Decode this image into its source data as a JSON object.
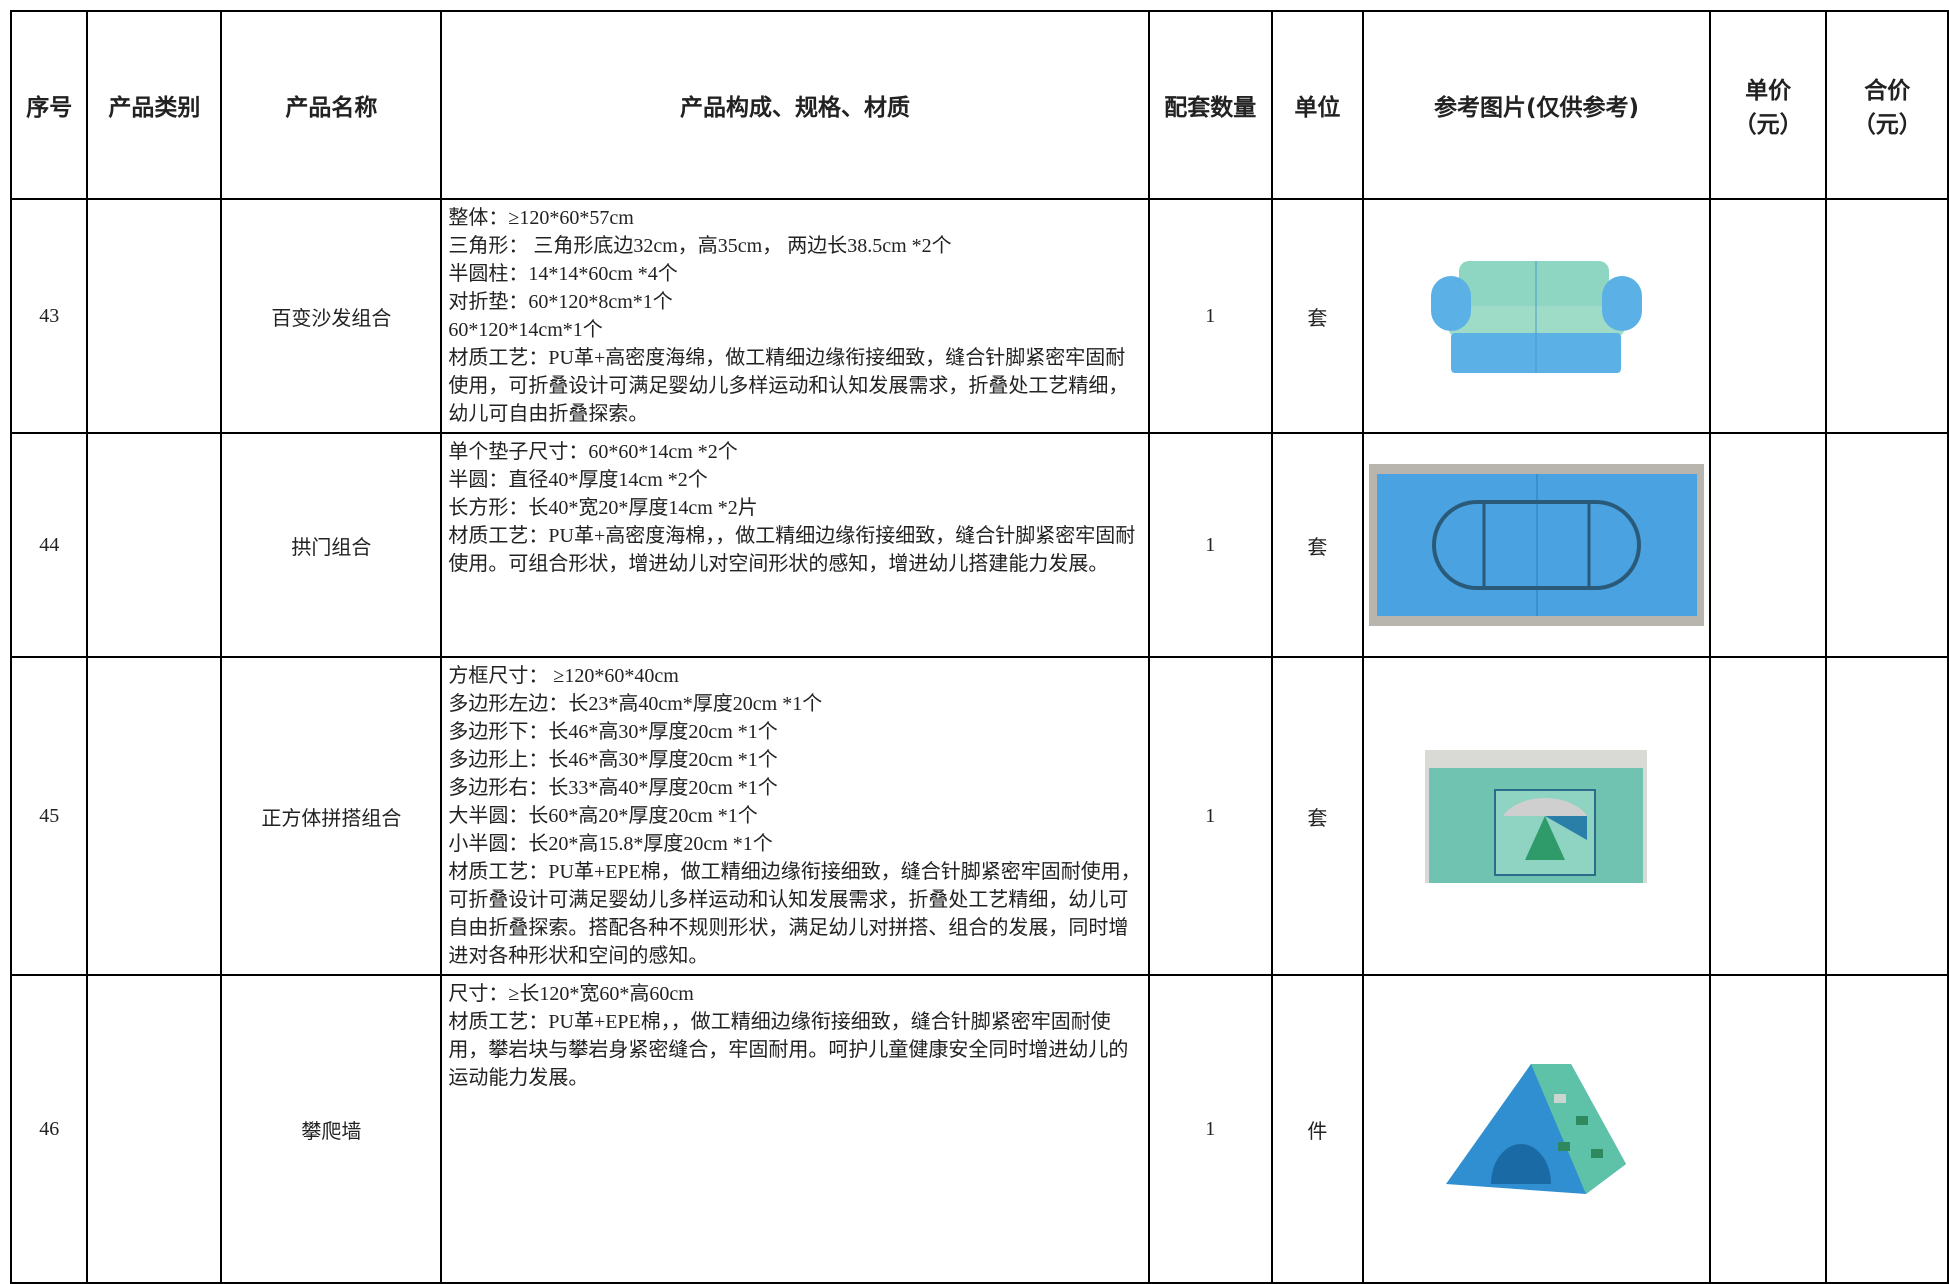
{
  "table": {
    "headers": [
      [
        "序号"
      ],
      [
        "产品类别"
      ],
      [
        "产品名称"
      ],
      [
        "产品构成、规格、材质"
      ],
      [
        "配套数量"
      ],
      [
        "单位"
      ],
      [
        "参考图片(仅供参考)"
      ],
      [
        "单价",
        "（元）"
      ],
      [
        "合价",
        "（元）"
      ]
    ],
    "rows": [
      {
        "no": "43",
        "name": "百变沙发组合",
        "spec": [
          "整体：≥120*60*57cm",
          "三角形： 三角形底边32cm，高35cm， 两边长38.5cm *2个",
          "半圆柱：14*14*60cm *4个",
          "对折垫：60*120*8cm*1个",
          "60*120*14cm*1个",
          "材质工艺：PU革+高密度海绵，做工精细边缘衔接细致，缝合针脚紧密牢固耐使用，可折叠设计可满足婴幼儿多样运动和认知发展需求，折叠处工艺精细，幼儿可自由折叠探索。"
        ],
        "qty": "1",
        "unit": "套"
      },
      {
        "no": "44",
        "name": "拱门组合",
        "spec": [
          "单个垫子尺寸：60*60*14cm *2个",
          "半圆：直径40*厚度14cm *2个",
          "长方形：长40*宽20*厚度14cm *2片",
          "材质工艺：PU革+高密度海棉，，做工精细边缘衔接细致，缝合针脚紧密牢固耐使用。可组合形状，增进幼儿对空间形状的感知，增进幼儿搭建能力发展。"
        ],
        "qty": "1",
        "unit": "套"
      },
      {
        "no": "45",
        "name": "正方体拼搭组合",
        "spec": [
          "方框尺寸： ≥120*60*40cm",
          "多边形左边：长23*高40cm*厚度20cm *1个",
          "多边形下：长46*高30*厚度20cm *1个",
          "多边形上：长46*高30*厚度20cm *1个",
          "多边形右：长33*高40*厚度20cm *1个",
          "大半圆：长60*高20*厚度20cm *1个",
          "小半圆：长20*高15.8*厚度20cm *1个",
          "材质工艺：PU革+EPE棉，做工精细边缘衔接细致，缝合针脚紧密牢固耐使用，可折叠设计可满足婴幼儿多样运动和认知发展需求，折叠处工艺精细，幼儿可自由折叠探索。搭配各种不规则形状，满足幼儿对拼搭、组合的发展，同时增进对各种形状和空间的感知。"
        ],
        "qty": "1",
        "unit": "套"
      },
      {
        "no": "46",
        "name": "攀爬墙",
        "spec": [
          "尺寸：≥长120*宽60*高60cm",
          "材质工艺：PU革+EPE棉，，做工精细边缘衔接细致，缝合针脚紧密牢固耐使用，攀岩块与攀岩身紧密缝合，牢固耐用。呵护儿童健康安全同时增进幼儿的运动能力发展。"
        ],
        "qty": "1",
        "unit": "件"
      }
    ]
  }
}
